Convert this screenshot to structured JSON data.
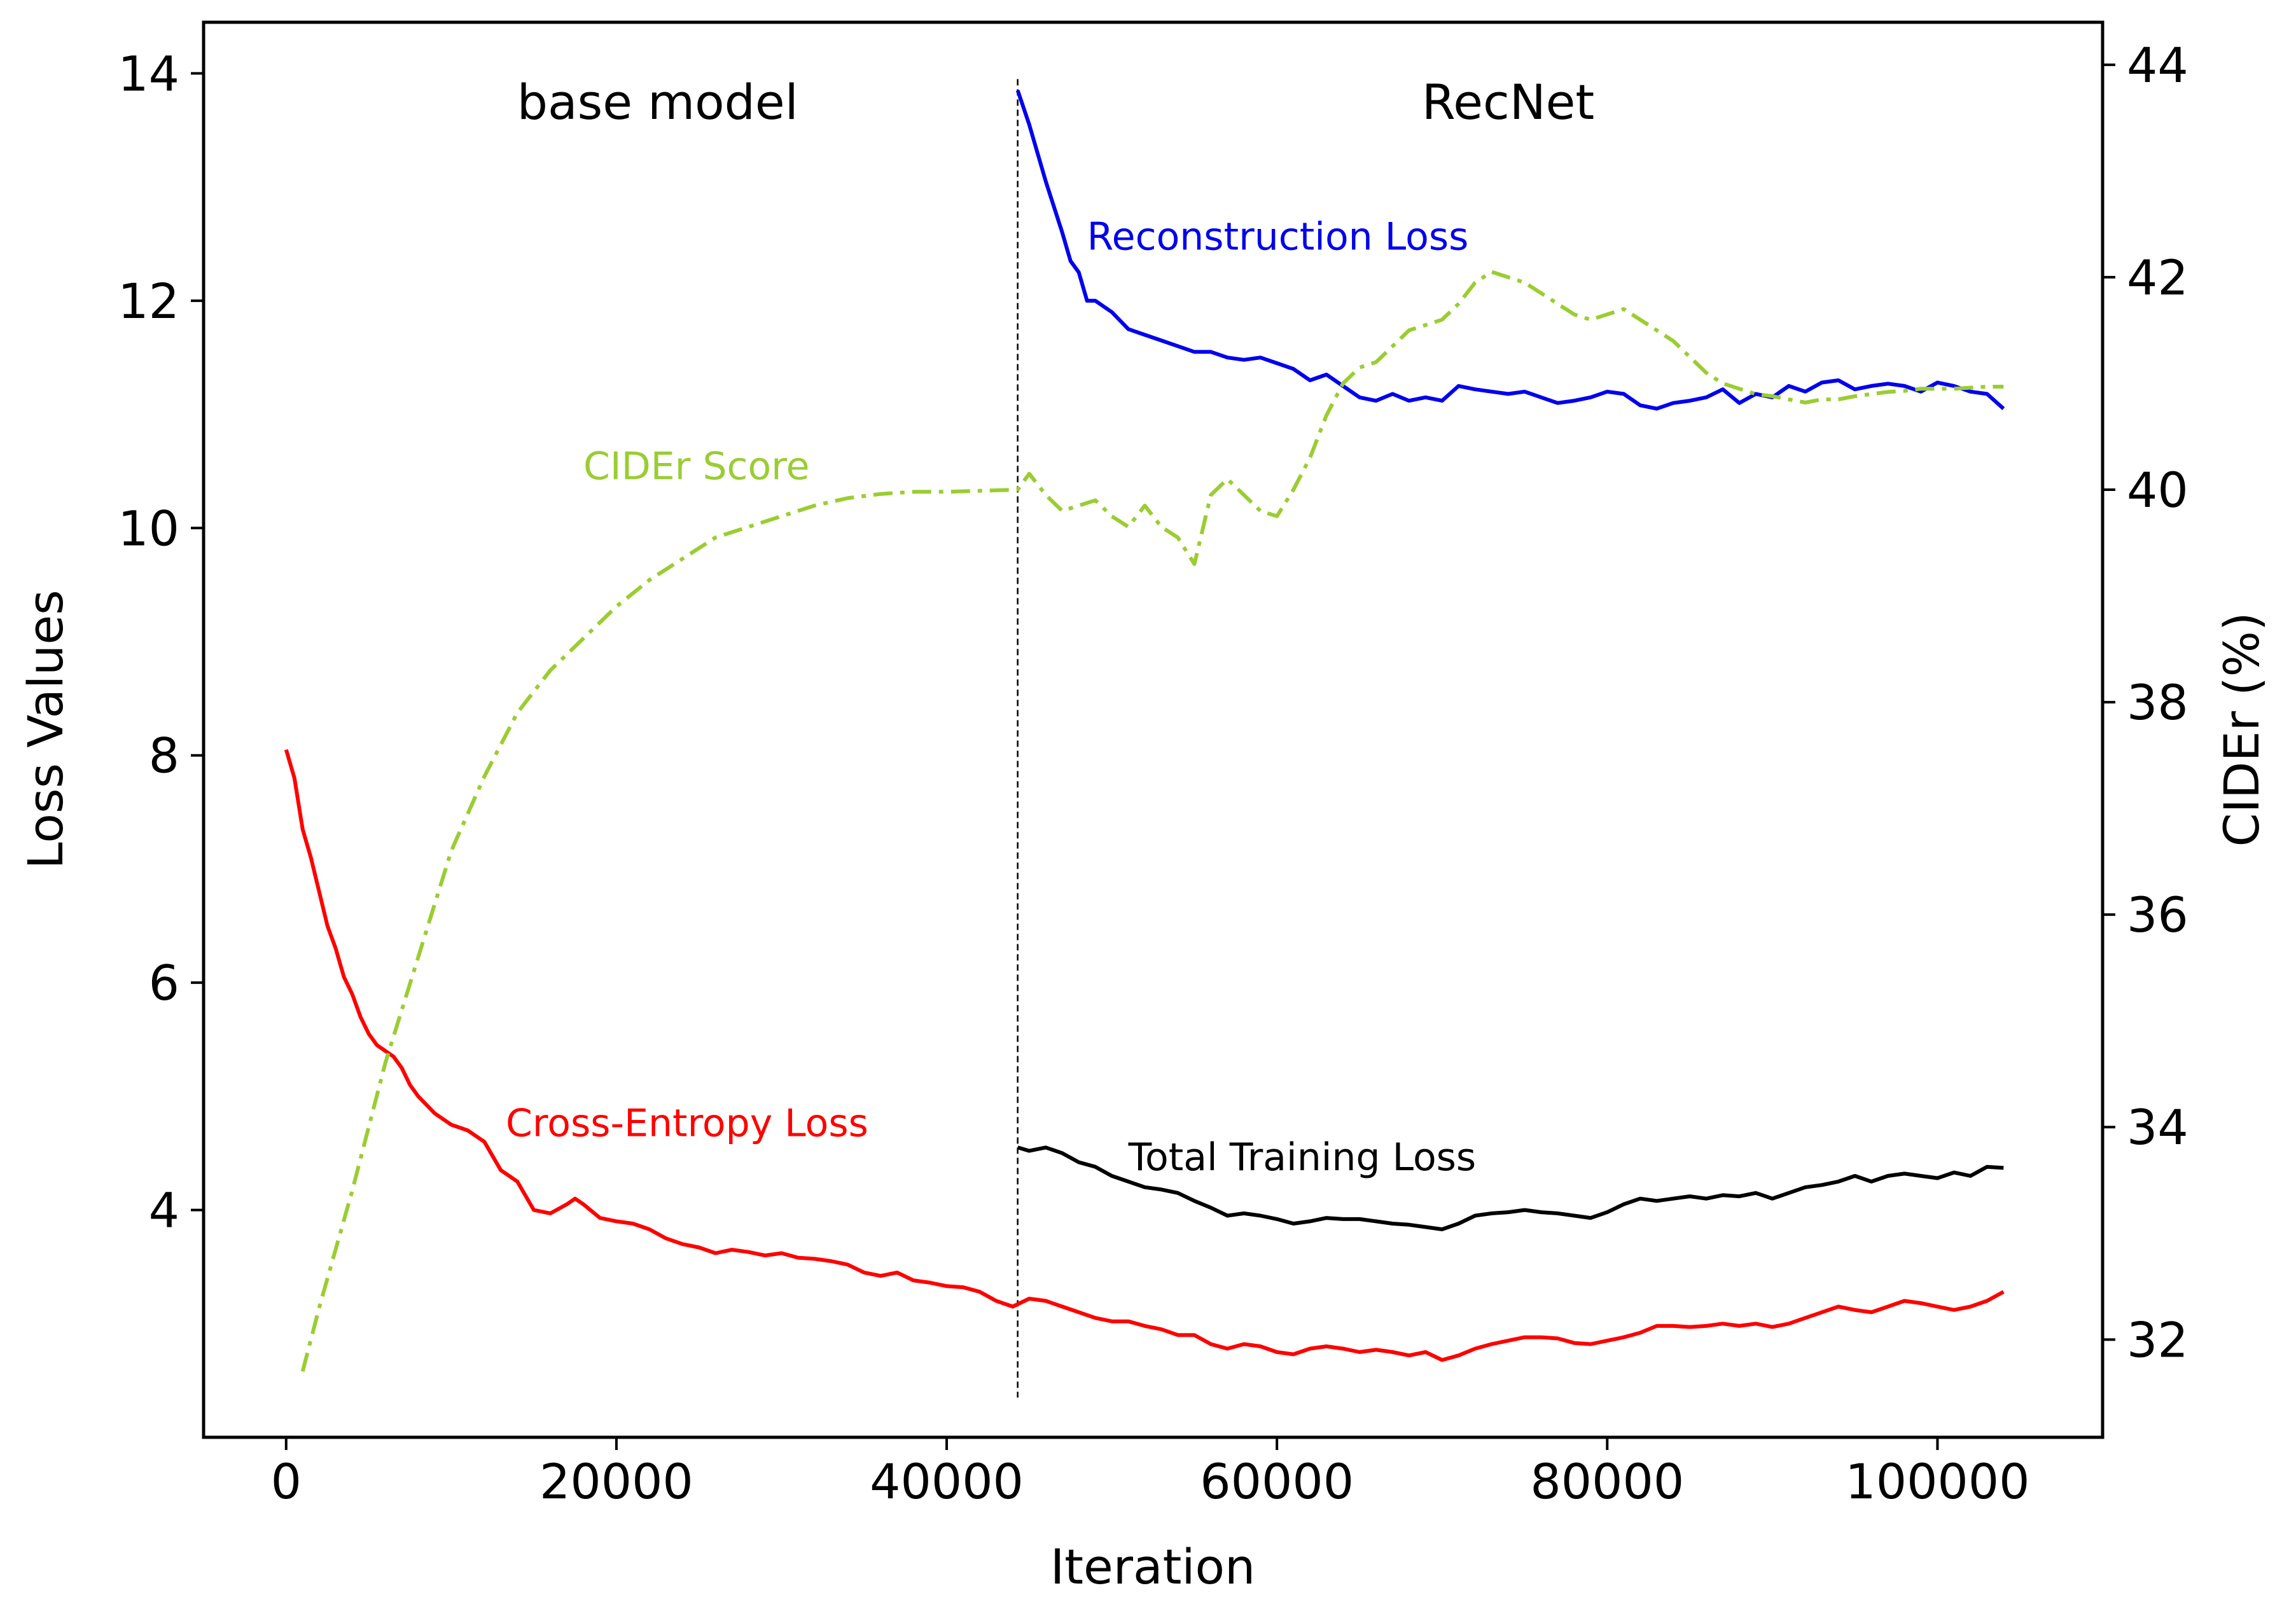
{
  "chart_data": {
    "type": "line",
    "title": "",
    "xlabel": "Iteration",
    "ylabel": "Loss Values",
    "y2label": "CIDEr (%)",
    "xlim": [
      -5000,
      110000
    ],
    "ylim": [
      2.0,
      14.45
    ],
    "y2lim": [
      31.08,
      44.4
    ],
    "x_ticks": [
      0,
      20000,
      40000,
      60000,
      80000,
      100000
    ],
    "x_tick_labels": [
      "0",
      "20000",
      "40000",
      "60000",
      "80000",
      "100000"
    ],
    "y_ticks": [
      4,
      6,
      8,
      10,
      12,
      14
    ],
    "y_tick_labels": [
      "4",
      "6",
      "8",
      "10",
      "12",
      "14"
    ],
    "y2_ticks": [
      32,
      34,
      36,
      38,
      40,
      42,
      44
    ],
    "y2_tick_labels": [
      "32",
      "34",
      "36",
      "38",
      "40",
      "42",
      "44"
    ],
    "grid": false,
    "legend": "none",
    "phase_divider": {
      "x": 44300,
      "style": "dashed"
    },
    "phase_labels": [
      {
        "text": "base model",
        "x": 22500,
        "y": 13.6
      },
      {
        "text": "RecNet",
        "x": 74000,
        "y": 13.6
      }
    ],
    "series": [
      {
        "name": "Cross-Entropy Loss",
        "axis": "left",
        "color": "#ff0000",
        "style": "solid",
        "label_at": {
          "x": 13300,
          "y": 4.65
        },
        "x": [
          0,
          500,
          1000,
          1500,
          2000,
          2500,
          3000,
          3500,
          4000,
          4500,
          5000,
          5500,
          6000,
          6500,
          7000,
          7500,
          8000,
          9000,
          10000,
          11000,
          12000,
          13000,
          14000,
          15000,
          16000,
          17000,
          17500,
          18000,
          19000,
          20000,
          21000,
          22000,
          23000,
          24000,
          25000,
          26000,
          27000,
          28000,
          29000,
          30000,
          31000,
          32000,
          33000,
          34000,
          35000,
          36000,
          37000,
          38000,
          39000,
          40000,
          41000,
          42000,
          43000,
          44000,
          45000,
          46000,
          47000,
          48000,
          49000,
          50000,
          51000,
          52000,
          53000,
          54000,
          55000,
          56000,
          57000,
          58000,
          59000,
          60000,
          61000,
          62000,
          63000,
          64000,
          65000,
          66000,
          67000,
          68000,
          69000,
          70000,
          71000,
          72000,
          73000,
          74000,
          75000,
          76000,
          77000,
          78000,
          79000,
          80000,
          81000,
          82000,
          83000,
          84000,
          85000,
          86000,
          87000,
          88000,
          89000,
          90000,
          91000,
          92000,
          93000,
          94000,
          95000,
          96000,
          97000,
          98000,
          99000,
          100000,
          101000,
          102000,
          103000,
          104000
        ],
        "values": [
          8.05,
          7.8,
          7.35,
          7.1,
          6.8,
          6.5,
          6.3,
          6.05,
          5.9,
          5.7,
          5.55,
          5.45,
          5.4,
          5.35,
          5.25,
          5.1,
          5.0,
          4.85,
          4.75,
          4.7,
          4.6,
          4.35,
          4.25,
          4.0,
          3.97,
          4.05,
          4.1,
          4.05,
          3.93,
          3.9,
          3.88,
          3.83,
          3.75,
          3.7,
          3.67,
          3.62,
          3.65,
          3.63,
          3.6,
          3.62,
          3.58,
          3.57,
          3.55,
          3.52,
          3.45,
          3.42,
          3.45,
          3.38,
          3.36,
          3.33,
          3.32,
          3.28,
          3.2,
          3.15,
          3.22,
          3.2,
          3.15,
          3.1,
          3.05,
          3.02,
          3.02,
          2.98,
          2.95,
          2.9,
          2.9,
          2.82,
          2.78,
          2.82,
          2.8,
          2.75,
          2.73,
          2.78,
          2.8,
          2.78,
          2.75,
          2.77,
          2.75,
          2.72,
          2.75,
          2.68,
          2.72,
          2.78,
          2.82,
          2.85,
          2.88,
          2.88,
          2.87,
          2.83,
          2.82,
          2.85,
          2.88,
          2.92,
          2.98,
          2.98,
          2.97,
          2.98,
          3.0,
          2.98,
          3.0,
          2.97,
          3.0,
          3.05,
          3.1,
          3.15,
          3.12,
          3.1,
          3.15,
          3.2,
          3.18,
          3.15,
          3.12,
          3.15,
          3.2,
          3.28
        ]
      },
      {
        "name": "Reconstruction Loss",
        "axis": "left",
        "color": "#0000ee",
        "style": "solid",
        "label_at": {
          "x": 48500,
          "y": 12.45
        },
        "x": [
          44300,
          45000,
          46000,
          47000,
          47500,
          48000,
          48500,
          49000,
          50000,
          51000,
          52000,
          53000,
          54000,
          55000,
          56000,
          57000,
          58000,
          59000,
          60000,
          61000,
          62000,
          63000,
          64000,
          65000,
          66000,
          67000,
          68000,
          69000,
          70000,
          71000,
          72000,
          73000,
          74000,
          75000,
          76000,
          77000,
          78000,
          79000,
          80000,
          81000,
          82000,
          83000,
          84000,
          85000,
          86000,
          87000,
          88000,
          89000,
          90000,
          91000,
          92000,
          93000,
          94000,
          95000,
          96000,
          97000,
          98000,
          99000,
          100000,
          101000,
          102000,
          103000,
          104000
        ],
        "values": [
          13.85,
          13.55,
          13.05,
          12.6,
          12.35,
          12.25,
          12.0,
          12.0,
          11.9,
          11.75,
          11.7,
          11.65,
          11.6,
          11.55,
          11.55,
          11.5,
          11.48,
          11.5,
          11.45,
          11.4,
          11.3,
          11.35,
          11.25,
          11.15,
          11.12,
          11.18,
          11.12,
          11.15,
          11.12,
          11.25,
          11.22,
          11.2,
          11.18,
          11.2,
          11.15,
          11.1,
          11.12,
          11.15,
          11.2,
          11.18,
          11.08,
          11.05,
          11.1,
          11.12,
          11.15,
          11.22,
          11.1,
          11.18,
          11.15,
          11.25,
          11.2,
          11.28,
          11.3,
          11.22,
          11.25,
          11.27,
          11.25,
          11.2,
          11.28,
          11.25,
          11.2,
          11.18,
          11.05
        ]
      },
      {
        "name": "Total Training Loss",
        "axis": "left",
        "color": "#000000",
        "style": "solid",
        "label_at": {
          "x": 51000,
          "y": 4.35
        },
        "x": [
          44300,
          45000,
          46000,
          47000,
          48000,
          49000,
          50000,
          51000,
          52000,
          53000,
          54000,
          55000,
          56000,
          57000,
          58000,
          59000,
          60000,
          61000,
          62000,
          63000,
          64000,
          65000,
          66000,
          67000,
          68000,
          69000,
          70000,
          71000,
          72000,
          73000,
          74000,
          75000,
          76000,
          77000,
          78000,
          79000,
          80000,
          81000,
          82000,
          83000,
          84000,
          85000,
          86000,
          87000,
          88000,
          89000,
          90000,
          91000,
          92000,
          93000,
          94000,
          95000,
          96000,
          97000,
          98000,
          99000,
          100000,
          101000,
          102000,
          103000,
          104000
        ],
        "values": [
          4.55,
          4.52,
          4.55,
          4.5,
          4.42,
          4.38,
          4.3,
          4.25,
          4.2,
          4.18,
          4.15,
          4.08,
          4.02,
          3.95,
          3.97,
          3.95,
          3.92,
          3.88,
          3.9,
          3.93,
          3.92,
          3.92,
          3.9,
          3.88,
          3.87,
          3.85,
          3.83,
          3.88,
          3.95,
          3.97,
          3.98,
          4.0,
          3.98,
          3.97,
          3.95,
          3.93,
          3.98,
          4.05,
          4.1,
          4.08,
          4.1,
          4.12,
          4.1,
          4.13,
          4.12,
          4.15,
          4.1,
          4.15,
          4.2,
          4.22,
          4.25,
          4.3,
          4.25,
          4.3,
          4.32,
          4.3,
          4.28,
          4.33,
          4.3,
          4.38,
          4.37
        ]
      },
      {
        "name": "CIDEr Score",
        "axis": "right",
        "color": "#9acd32",
        "style": "dashdot",
        "label_at": {
          "x": 18000,
          "y": 40.1
        },
        "x": [
          1000,
          2000,
          4000,
          6000,
          8000,
          10000,
          12000,
          14000,
          16000,
          18000,
          20000,
          22000,
          24000,
          26000,
          28000,
          30000,
          32000,
          34000,
          36000,
          38000,
          40000,
          42000,
          44300,
          45000,
          46000,
          47000,
          48000,
          49000,
          50000,
          51000,
          52000,
          53000,
          54000,
          55000,
          56000,
          57000,
          58000,
          59000,
          60000,
          61000,
          62000,
          63000,
          64000,
          65000,
          66000,
          67000,
          68000,
          69000,
          70000,
          71000,
          72000,
          73000,
          74000,
          75000,
          76000,
          77000,
          78000,
          79000,
          80000,
          81000,
          82000,
          83000,
          84000,
          85000,
          86000,
          87000,
          88000,
          89000,
          90000,
          91000,
          92000,
          93000,
          94000,
          95000,
          96000,
          97000,
          98000,
          99000,
          100000,
          101000,
          102000,
          103000,
          104000
        ],
        "values": [
          31.7,
          32.3,
          33.4,
          34.6,
          35.6,
          36.6,
          37.3,
          37.9,
          38.3,
          38.6,
          38.9,
          39.15,
          39.35,
          39.55,
          39.65,
          39.75,
          39.85,
          39.92,
          39.96,
          39.98,
          39.98,
          39.99,
          40.0,
          40.15,
          39.95,
          39.8,
          39.85,
          39.9,
          39.75,
          39.65,
          39.85,
          39.65,
          39.55,
          39.3,
          39.95,
          40.1,
          39.95,
          39.8,
          39.75,
          40.0,
          40.3,
          40.7,
          41.0,
          41.15,
          41.2,
          41.35,
          41.5,
          41.55,
          41.6,
          41.75,
          41.95,
          42.05,
          42.0,
          41.95,
          41.85,
          41.75,
          41.65,
          41.6,
          41.65,
          41.7,
          41.6,
          41.5,
          41.4,
          41.25,
          41.1,
          41.0,
          40.95,
          40.9,
          40.88,
          40.85,
          40.82,
          40.85,
          40.85,
          40.88,
          40.9,
          40.92,
          40.93,
          40.95,
          40.95,
          40.95,
          40.96,
          40.97,
          40.97
        ]
      }
    ]
  }
}
